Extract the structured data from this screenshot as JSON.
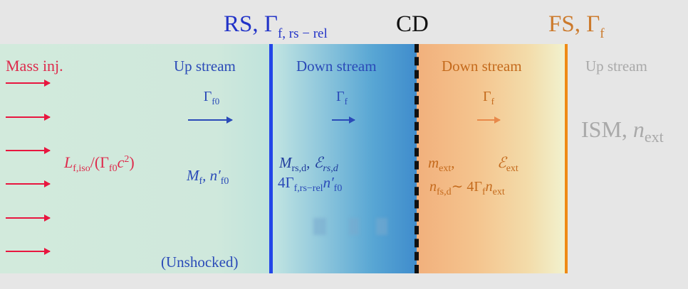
{
  "headers": {
    "rs": "RS, Γ",
    "rs_sub": "f, rs − rel",
    "cd": "CD",
    "fs": "FS, Γ",
    "fs_sub": "f"
  },
  "unshocked": {
    "mass_inj": "Mass inj.",
    "up_stream": "Up stream",
    "gamma": "Γ",
    "gamma_sub": "f0",
    "luminosity": "L",
    "lum_sub": "f,iso",
    "lum_rest": "/(Γ",
    "lum_rest_sub": "f0",
    "lum_tail": "c",
    "lum_sup": "2",
    "lum_close": ")",
    "mass": "M",
    "mass_sub": "f",
    "density": ", n′",
    "density_sub": "f0",
    "unshocked": "(Unshocked)"
  },
  "reverse_shocked": {
    "down_stream": "Down stream",
    "gamma": "Γ",
    "gamma_sub": "f",
    "mass": "M",
    "mass_sub": "rs,d",
    "energy": ", ℰ",
    "energy_sub": "rs,d",
    "density": "4Γ",
    "density_sub": "f,rs−rel",
    "density_tail": "n′",
    "density_tail_sub": "f0"
  },
  "forward_shocked": {
    "down_stream": "Down stream",
    "gamma": "Γ",
    "gamma_sub": "f",
    "mass": "m",
    "mass_sub": "ext",
    "mass_comma": ",",
    "energy": "ℰ",
    "energy_sub": "ext",
    "density": "n",
    "density_sub": "fs,d",
    "density_rel": "∼ 4Γ",
    "density_rel_sub": "f",
    "density_tail": "n",
    "density_tail_sub": "ext"
  },
  "ambient": {
    "up_stream": "Up stream",
    "ism": "ISM, ",
    "n": "n",
    "n_sub": "ext"
  },
  "colors": {
    "rs": "#2233c8",
    "fs": "#cc7a2c",
    "injection": "#e8163f",
    "ambient": "#a9a9a9"
  }
}
